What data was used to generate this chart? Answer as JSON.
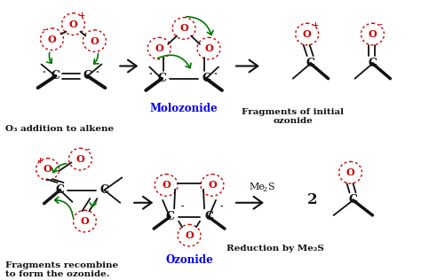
{
  "bg_color": "#ffffff",
  "red_color": "#cc0000",
  "green_color": "#007700",
  "blue_color": "#0000ee",
  "black_color": "#111111",
  "labels": {
    "step1": "O₃ addition to alkene",
    "step2": "Molozonide",
    "step3": "Fragments of initial\nozonide",
    "step4": "Fragments recombine\nto form the ozonide.",
    "step5": "Ozonide",
    "step6": "Reduction by Me₂S"
  },
  "figsize": [
    4.74,
    3.16
  ],
  "dpi": 100
}
